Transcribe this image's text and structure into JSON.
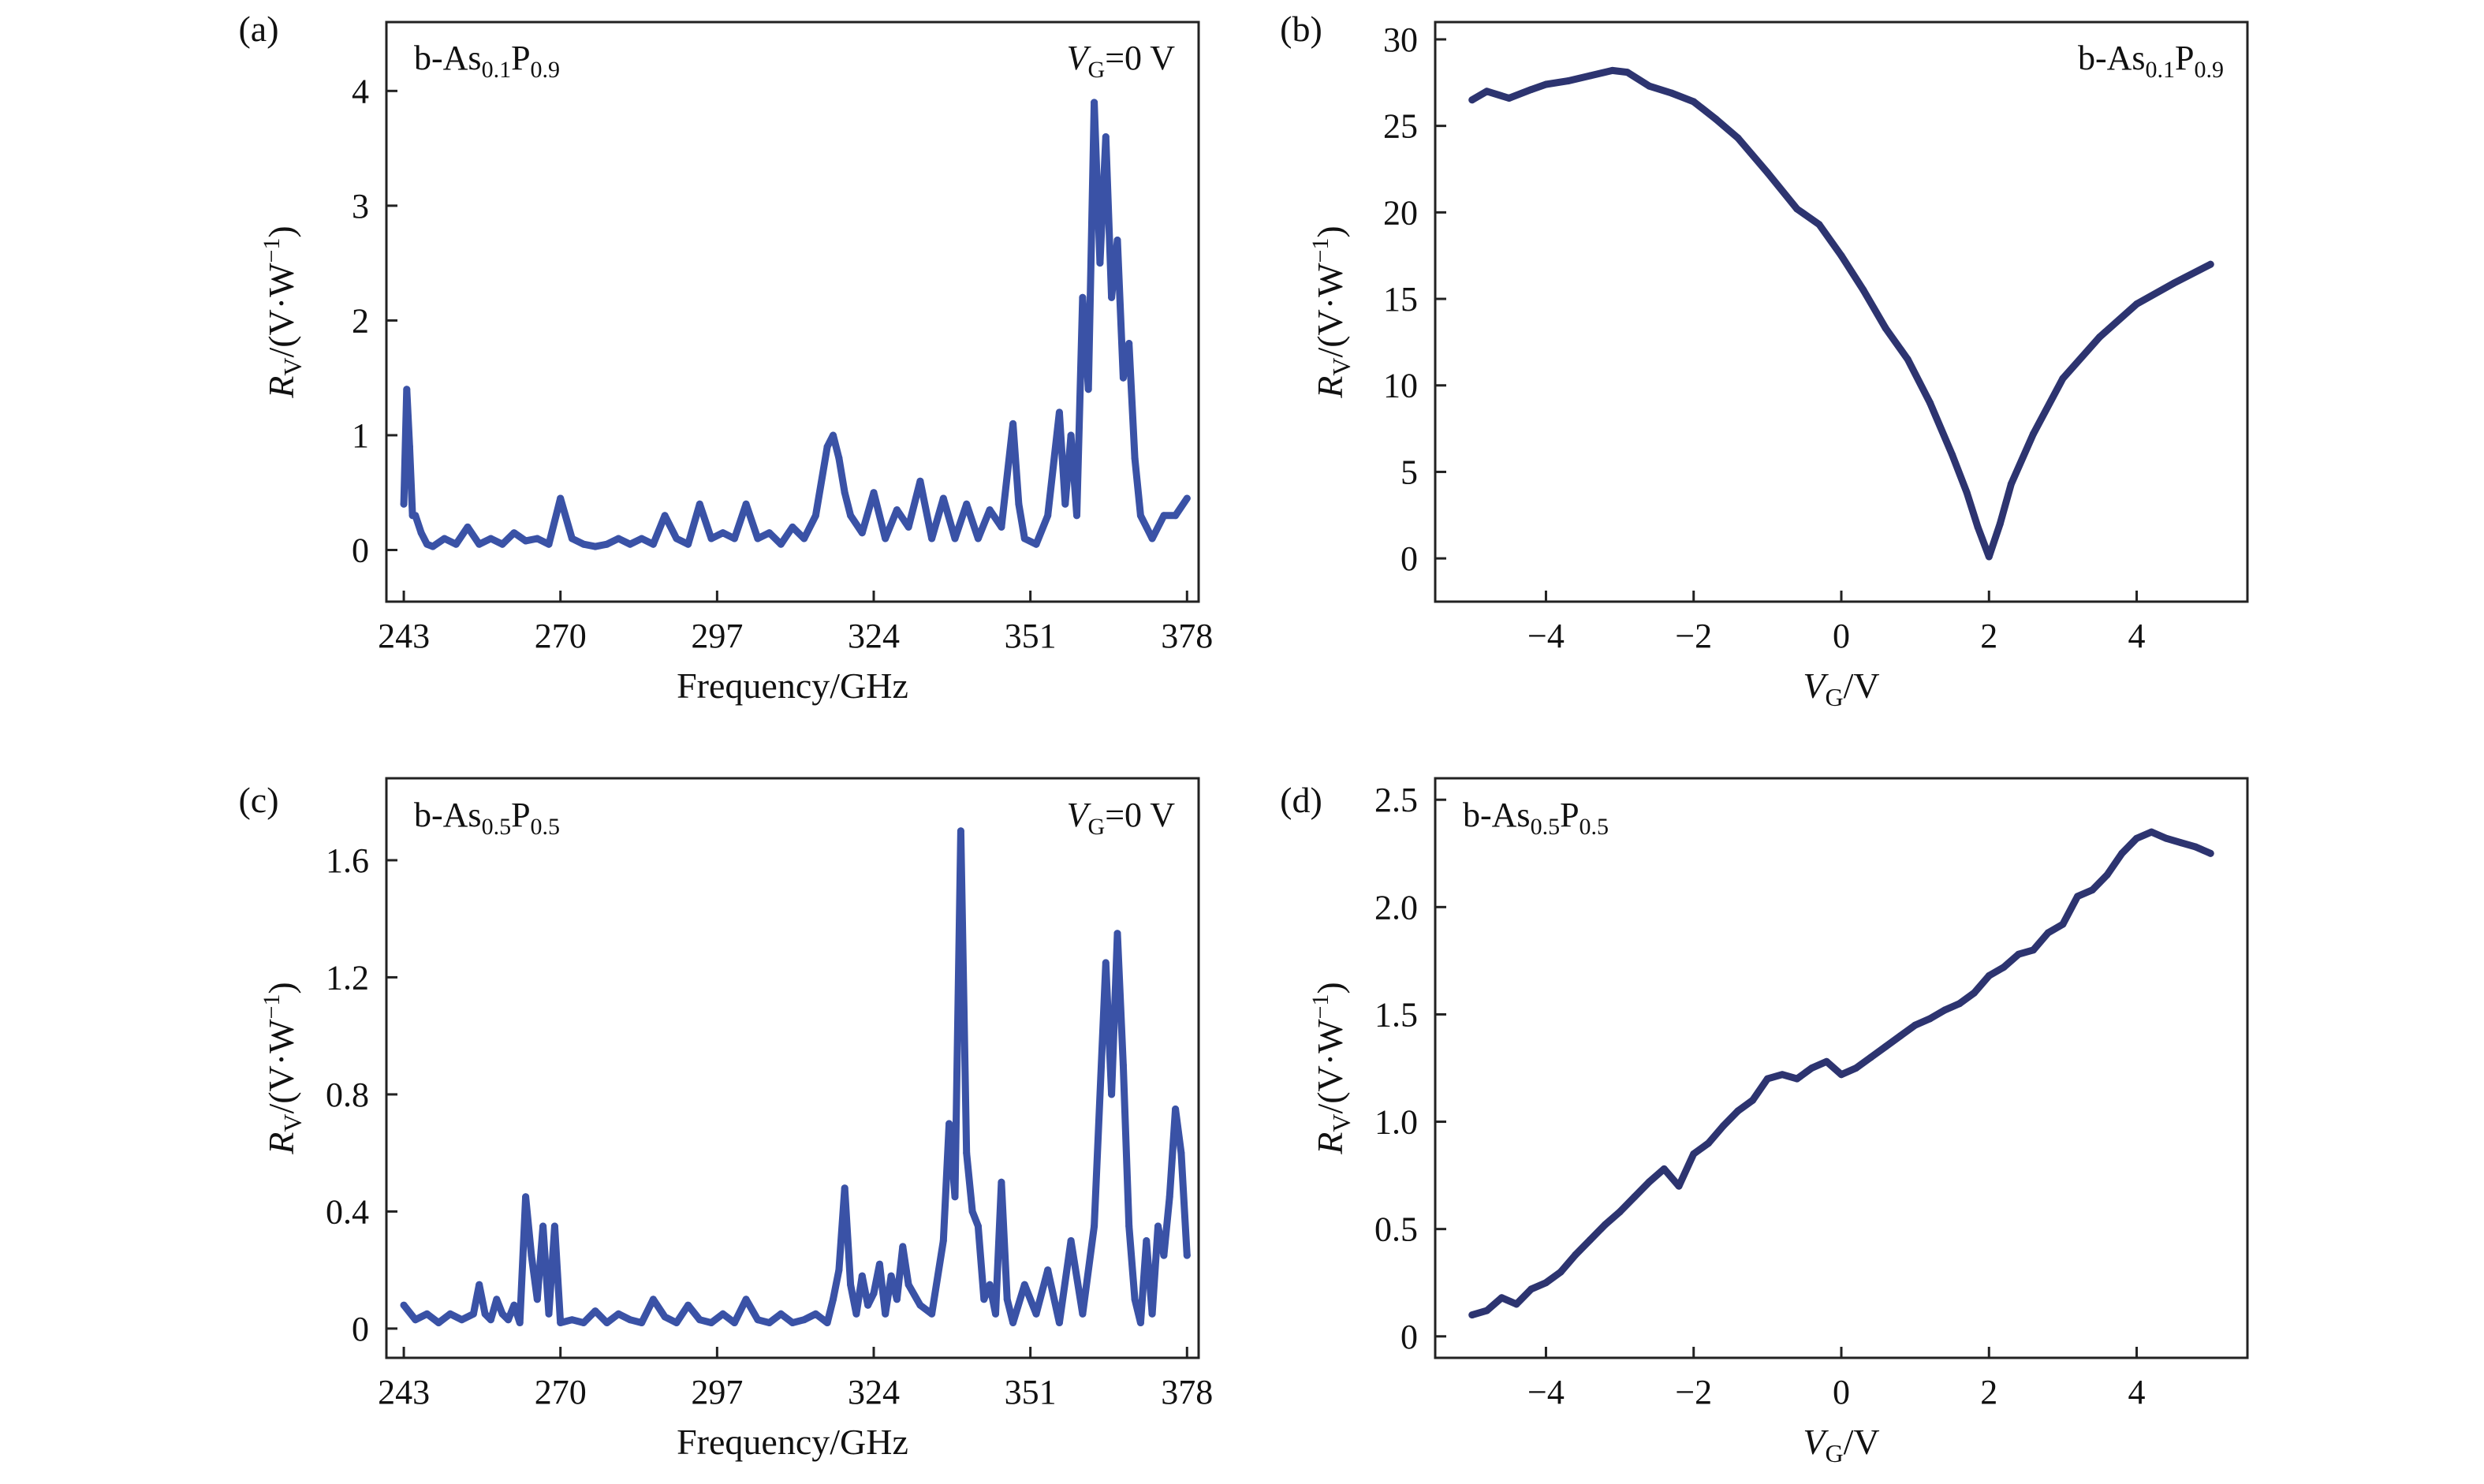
{
  "chart_data": [
    {
      "panel": "(a)",
      "type": "line",
      "material": {
        "base": "b-As",
        "sub1": "0.1",
        "mid": "P",
        "sub2": "0.9"
      },
      "condition": {
        "var": "V",
        "sub": "G",
        "text": "=0 V"
      },
      "xlabel": "Frequency/GHz",
      "ylabel": {
        "main": "R",
        "sub": "V",
        "unit": "/(V·W",
        "sup": "−1",
        "tail": ")"
      },
      "xlim": [
        240,
        380
      ],
      "ylim": [
        -0.45,
        4.6
      ],
      "xticks": [
        243,
        270,
        297,
        324,
        351,
        378
      ],
      "xtick_labels": [
        "243",
        "270",
        "297",
        "324",
        "351",
        "378"
      ],
      "yticks": [
        0,
        1,
        2,
        3,
        4
      ],
      "ytick_labels": [
        "0",
        "1",
        "2",
        "3",
        "4"
      ],
      "color": "#3a52a6",
      "series": [
        {
          "x": [
            243,
            243.5,
            244,
            244.5,
            245,
            246,
            247,
            248,
            250,
            252,
            254,
            256,
            258,
            260,
            262,
            264,
            266,
            268,
            270,
            272,
            274,
            276,
            278,
            280,
            282,
            284,
            286,
            288,
            290,
            292,
            294,
            296,
            298,
            300,
            302,
            304,
            306,
            308,
            310,
            312,
            314,
            316,
            317,
            318,
            319,
            320,
            322,
            324,
            326,
            328,
            330,
            332,
            334,
            336,
            338,
            340,
            342,
            344,
            346,
            348,
            349,
            350,
            352,
            354,
            356,
            357,
            358,
            359,
            360,
            361,
            362,
            363,
            364,
            365,
            366,
            367,
            368,
            369,
            370,
            371,
            372,
            374,
            376,
            378
          ],
          "y": [
            0.4,
            1.4,
            0.9,
            0.3,
            0.3,
            0.15,
            0.05,
            0.03,
            0.1,
            0.05,
            0.2,
            0.05,
            0.1,
            0.05,
            0.15,
            0.08,
            0.1,
            0.05,
            0.45,
            0.1,
            0.05,
            0.03,
            0.05,
            0.1,
            0.05,
            0.1,
            0.05,
            0.3,
            0.1,
            0.05,
            0.4,
            0.1,
            0.15,
            0.1,
            0.4,
            0.1,
            0.15,
            0.05,
            0.2,
            0.1,
            0.3,
            0.9,
            1.0,
            0.8,
            0.5,
            0.3,
            0.15,
            0.5,
            0.1,
            0.35,
            0.2,
            0.6,
            0.1,
            0.45,
            0.1,
            0.4,
            0.1,
            0.35,
            0.2,
            1.1,
            0.4,
            0.1,
            0.05,
            0.3,
            1.2,
            0.4,
            1.0,
            0.3,
            2.2,
            1.4,
            3.9,
            2.5,
            3.6,
            2.2,
            2.7,
            1.5,
            1.8,
            0.8,
            0.3,
            0.2,
            0.1,
            0.3,
            0.3,
            0.45
          ]
        }
      ]
    },
    {
      "panel": "(b)",
      "type": "line",
      "material": {
        "base": "b-As",
        "sub1": "0.1",
        "mid": "P",
        "sub2": "0.9"
      },
      "xlabel": {
        "main": "V",
        "sub": "G",
        "unit": "/V"
      },
      "ylabel": {
        "main": "R",
        "sub": "V",
        "unit": "/(V·W",
        "sup": "−1",
        "tail": ")"
      },
      "xlim": [
        -5.5,
        5.5
      ],
      "ylim": [
        -2.5,
        31
      ],
      "xticks": [
        -4,
        -2,
        0,
        2,
        4
      ],
      "xtick_labels": [
        "−4",
        "−2",
        "0",
        "2",
        "4"
      ],
      "yticks": [
        0,
        5,
        10,
        15,
        20,
        25,
        30
      ],
      "ytick_labels": [
        "0",
        "5",
        "10",
        "15",
        "20",
        "25",
        "30"
      ],
      "color": "#2d3470",
      "series": [
        {
          "x": [
            -5,
            -4.8,
            -4.5,
            -4.2,
            -4,
            -3.7,
            -3.4,
            -3.1,
            -2.9,
            -2.6,
            -2.3,
            -2,
            -1.7,
            -1.4,
            -1,
            -0.6,
            -0.3,
            0,
            0.3,
            0.6,
            0.9,
            1.2,
            1.5,
            1.7,
            1.85,
            2,
            2.15,
            2.3,
            2.6,
            3,
            3.5,
            4,
            4.5,
            5
          ],
          "y": [
            26.5,
            27,
            26.6,
            27.1,
            27.4,
            27.6,
            27.9,
            28.2,
            28.1,
            27.3,
            26.9,
            26.4,
            25.4,
            24.3,
            22.3,
            20.2,
            19.3,
            17.5,
            15.5,
            13.3,
            11.5,
            9.0,
            6.0,
            3.8,
            1.8,
            0.1,
            2.0,
            4.3,
            7.2,
            10.4,
            12.8,
            14.7,
            15.9,
            17.0
          ]
        }
      ]
    },
    {
      "panel": "(c)",
      "type": "line",
      "material": {
        "base": "b-As",
        "sub1": "0.5",
        "mid": "P",
        "sub2": "0.5"
      },
      "condition": {
        "var": "V",
        "sub": "G",
        "text": "=0 V"
      },
      "xlabel": "Frequency/GHz",
      "ylabel": {
        "main": "R",
        "sub": "V",
        "unit": "/(V·W",
        "sup": "−1",
        "tail": ")"
      },
      "xlim": [
        240,
        380
      ],
      "ylim": [
        -0.1,
        1.88
      ],
      "xticks": [
        243,
        270,
        297,
        324,
        351,
        378
      ],
      "xtick_labels": [
        "243",
        "270",
        "297",
        "324",
        "351",
        "378"
      ],
      "yticks": [
        0,
        0.4,
        0.8,
        1.2,
        1.6
      ],
      "ytick_labels": [
        "0",
        "0.4",
        "0.8",
        "1.2",
        "1.6"
      ],
      "color": "#3a52a6",
      "series": [
        {
          "x": [
            243,
            245,
            247,
            249,
            251,
            253,
            255,
            256,
            257,
            258,
            259,
            260,
            261,
            262,
            263,
            264,
            265,
            266,
            267,
            268,
            269,
            270,
            272,
            274,
            276,
            278,
            280,
            282,
            284,
            286,
            288,
            290,
            292,
            294,
            296,
            298,
            300,
            302,
            304,
            306,
            308,
            310,
            312,
            314,
            316,
            317,
            318,
            319,
            320,
            321,
            322,
            323,
            324,
            325,
            326,
            327,
            328,
            329,
            330,
            332,
            334,
            336,
            337,
            338,
            339,
            340,
            341,
            342,
            343,
            344,
            345,
            346,
            347,
            348,
            350,
            352,
            354,
            356,
            358,
            360,
            362,
            364,
            365,
            366,
            367,
            368,
            369,
            370,
            371,
            372,
            373,
            374,
            375,
            376,
            377,
            378
          ],
          "y": [
            0.08,
            0.03,
            0.05,
            0.02,
            0.05,
            0.03,
            0.05,
            0.15,
            0.05,
            0.03,
            0.1,
            0.05,
            0.03,
            0.08,
            0.02,
            0.45,
            0.25,
            0.1,
            0.35,
            0.05,
            0.35,
            0.02,
            0.03,
            0.02,
            0.06,
            0.02,
            0.05,
            0.03,
            0.02,
            0.1,
            0.04,
            0.02,
            0.08,
            0.03,
            0.02,
            0.05,
            0.02,
            0.1,
            0.03,
            0.02,
            0.05,
            0.02,
            0.03,
            0.05,
            0.02,
            0.1,
            0.2,
            0.48,
            0.15,
            0.05,
            0.18,
            0.08,
            0.12,
            0.22,
            0.05,
            0.18,
            0.1,
            0.28,
            0.15,
            0.08,
            0.05,
            0.3,
            0.7,
            0.45,
            1.7,
            0.6,
            0.4,
            0.35,
            0.1,
            0.15,
            0.05,
            0.5,
            0.1,
            0.02,
            0.15,
            0.05,
            0.2,
            0.02,
            0.3,
            0.05,
            0.35,
            1.25,
            0.8,
            1.35,
            0.9,
            0.35,
            0.1,
            0.02,
            0.3,
            0.05,
            0.35,
            0.25,
            0.45,
            0.75,
            0.6,
            0.25
          ]
        }
      ]
    },
    {
      "panel": "(d)",
      "type": "line",
      "material": {
        "base": "b-As",
        "sub1": "0.5",
        "mid": "P",
        "sub2": "0.5"
      },
      "xlabel": {
        "main": "V",
        "sub": "G",
        "unit": "/V"
      },
      "ylabel": {
        "main": "R",
        "sub": "V",
        "unit": "/(V·W",
        "sup": "−1",
        "tail": ")"
      },
      "xlim": [
        -5.5,
        5.5
      ],
      "ylim": [
        -0.1,
        2.6
      ],
      "xticks": [
        -4,
        -2,
        0,
        2,
        4
      ],
      "xtick_labels": [
        "−4",
        "−2",
        "0",
        "2",
        "4"
      ],
      "yticks": [
        0,
        0.5,
        1.0,
        1.5,
        2.0,
        2.5
      ],
      "ytick_labels": [
        "0",
        "0.5",
        "1.0",
        "1.5",
        "2.0",
        "2.5"
      ],
      "color": "#2d3470",
      "series": [
        {
          "x": [
            -5,
            -4.8,
            -4.6,
            -4.4,
            -4.2,
            -4,
            -3.8,
            -3.6,
            -3.4,
            -3.2,
            -3,
            -2.8,
            -2.6,
            -2.4,
            -2.2,
            -2,
            -1.8,
            -1.6,
            -1.4,
            -1.2,
            -1,
            -0.8,
            -0.6,
            -0.4,
            -0.2,
            0,
            0.2,
            0.4,
            0.6,
            0.8,
            1,
            1.2,
            1.4,
            1.6,
            1.8,
            2,
            2.2,
            2.4,
            2.6,
            2.8,
            3,
            3.2,
            3.4,
            3.6,
            3.8,
            4,
            4.2,
            4.4,
            4.6,
            4.8,
            5
          ],
          "y": [
            0.1,
            0.12,
            0.18,
            0.15,
            0.22,
            0.25,
            0.3,
            0.38,
            0.45,
            0.52,
            0.58,
            0.65,
            0.72,
            0.78,
            0.7,
            0.85,
            0.9,
            0.98,
            1.05,
            1.1,
            1.2,
            1.22,
            1.2,
            1.25,
            1.28,
            1.22,
            1.25,
            1.3,
            1.35,
            1.4,
            1.45,
            1.48,
            1.52,
            1.55,
            1.6,
            1.68,
            1.72,
            1.78,
            1.8,
            1.88,
            1.92,
            2.05,
            2.08,
            2.15,
            2.25,
            2.32,
            2.35,
            2.32,
            2.3,
            2.28,
            2.25
          ]
        }
      ]
    }
  ]
}
